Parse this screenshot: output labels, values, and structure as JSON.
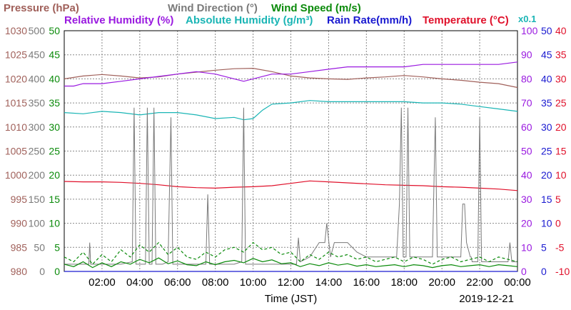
{
  "chart_data": {
    "type": "line",
    "title_lines": [
      [
        {
          "text": "Pressure (hPa)",
          "color": "#a0605a"
        },
        {
          "text": "Wind Direction (°)",
          "color": "#7a7a7a"
        },
        {
          "text": "Wind Speed (m/s)",
          "color": "#0a8a0a"
        }
      ],
      [
        {
          "text": "Relative Humidity (%)",
          "color": "#9a1ae0"
        },
        {
          "text": "Absolute Humidity (g/m³)",
          "color": "#1ab5b5"
        },
        {
          "text": "Rain Rate(mm/h)",
          "color": "#1a1ad0"
        },
        {
          "text": "Temperature (°C)",
          "color": "#e0102a"
        }
      ]
    ],
    "abs_humidity_scale_note": "x0.1",
    "xlabel": "Time (JST)",
    "date": "2019-12-21",
    "x_ticks": [
      "02:00",
      "04:00",
      "06:00",
      "08:00",
      "10:00",
      "12:00",
      "14:00",
      "16:00",
      "18:00",
      "20:00",
      "22:00",
      "00:00"
    ],
    "x_range_hours": [
      0,
      24
    ],
    "grid": true,
    "axes": {
      "pressure": {
        "range": [
          980,
          1030
        ],
        "ticks": [
          "980",
          "985",
          "990",
          "995",
          "1000",
          "1005",
          "1010",
          "1015",
          "1020",
          "1025",
          "1030"
        ],
        "color": "#a0605a"
      },
      "wind_direction": {
        "range": [
          0,
          500
        ],
        "ticks": [
          "0",
          "50",
          "100",
          "150",
          "200",
          "250",
          "300",
          "350",
          "400",
          "450",
          "500"
        ],
        "color": "#7a7a7a"
      },
      "wind_speed": {
        "range": [
          0,
          50
        ],
        "ticks": [
          "0",
          "5",
          "10",
          "15",
          "20",
          "25",
          "30",
          "35",
          "40",
          "45",
          "50"
        ],
        "color": "#0a8a0a"
      },
      "relative_humidity": {
        "range": [
          0,
          100
        ],
        "ticks": [
          "0",
          "10",
          "20",
          "30",
          "40",
          "50",
          "60",
          "70",
          "80",
          "90",
          "100"
        ],
        "color": "#9a1ae0"
      },
      "rain_rate": {
        "range": [
          0,
          50
        ],
        "ticks": [
          "0",
          "5",
          "10",
          "15",
          "20",
          "25",
          "30",
          "35",
          "40",
          "45",
          "50"
        ],
        "color": "#1a1ad0"
      },
      "temperature": {
        "range": [
          -10,
          40
        ],
        "ticks": [
          "-10",
          "-5",
          "0",
          "5",
          "10",
          "15",
          "20",
          "25",
          "30",
          "35",
          "40"
        ],
        "color": "#e0102a"
      }
    },
    "series": [
      {
        "name": "Pressure (hPa)",
        "color": "#a0605a",
        "axis": "pressure",
        "style": "solid",
        "x": [
          0,
          1,
          2,
          3,
          4,
          5,
          6,
          7,
          8,
          9,
          10,
          11,
          12,
          13,
          14,
          15,
          16,
          17,
          18,
          19,
          20,
          21,
          22,
          23,
          24
        ],
        "y": [
          1020,
          1020.6,
          1020.9,
          1020.6,
          1020.2,
          1020.4,
          1021.0,
          1021.4,
          1021.8,
          1022.1,
          1022.2,
          1021.5,
          1020.6,
          1020.2,
          1020.0,
          1019.9,
          1020.2,
          1020.4,
          1020.7,
          1020.4,
          1020.0,
          1019.7,
          1019.3,
          1019.0,
          1018.2
        ]
      },
      {
        "name": "Relative Humidity (%)",
        "color": "#9a1ae0",
        "axis": "relative_humidity",
        "style": "solid",
        "x": [
          0,
          0.5,
          1,
          2,
          3,
          4,
          5,
          6,
          7,
          8,
          9,
          9.5,
          10,
          11,
          12,
          13,
          14,
          15,
          16,
          17,
          18,
          19,
          20,
          21,
          22,
          23,
          24
        ],
        "y": [
          77,
          77,
          78,
          78,
          79,
          80,
          81,
          82,
          83,
          82,
          80,
          79,
          80,
          82,
          82,
          83,
          84,
          85,
          85,
          85,
          85,
          86,
          86,
          86,
          86,
          86,
          87
        ]
      },
      {
        "name": "Absolute Humidity (g/m³)",
        "color": "#1ab5b5",
        "axis": "relative_humidity",
        "scale_note": "x0.1",
        "x": [
          0,
          1,
          2,
          3,
          4,
          5,
          6,
          7,
          8,
          9,
          9.5,
          10,
          10.5,
          11,
          12,
          13,
          14,
          15,
          16,
          17,
          18,
          19,
          20,
          21,
          22,
          23,
          24
        ],
        "y": [
          66,
          65.5,
          66.5,
          66,
          65,
          66,
          66,
          65,
          63.5,
          64,
          63,
          63.5,
          67,
          69.5,
          70,
          71,
          70.5,
          70.5,
          70.5,
          70.5,
          70.5,
          70,
          70,
          69.5,
          68.5,
          67.5,
          66.5
        ]
      },
      {
        "name": "Temperature (°C)",
        "color": "#e0102a",
        "axis": "temperature",
        "style": "solid",
        "x": [
          0,
          1,
          2,
          3,
          4,
          5,
          6,
          7,
          8,
          9,
          10,
          11,
          12,
          13,
          14,
          15,
          16,
          17,
          18,
          19,
          20,
          21,
          22,
          23,
          24
        ],
        "y": [
          8.7,
          8.6,
          8.6,
          8.5,
          8.3,
          8.0,
          7.6,
          7.4,
          7.3,
          7.5,
          7.6,
          7.8,
          8.3,
          8.8,
          8.6,
          8.4,
          8.2,
          8.0,
          7.9,
          7.8,
          7.6,
          7.5,
          7.3,
          7.1,
          6.8
        ]
      },
      {
        "name": "Wind Direction (°)",
        "color": "#7a7a7a",
        "axis": "wind_direction",
        "style": "solid",
        "x": [
          0,
          1.3,
          1.35,
          1.4,
          3,
          3.6,
          3.7,
          3.8,
          4.3,
          4.4,
          4.5,
          4.65,
          4.75,
          4.85,
          5.2,
          5.5,
          5.65,
          5.75,
          5.85,
          6.2,
          7.5,
          7.6,
          7.7,
          9.0,
          9.4,
          9.5,
          9.6,
          10.2,
          11,
          12.3,
          12.4,
          12.5,
          13,
          13.5,
          13.8,
          13.9,
          14.1,
          14.3,
          15,
          15.5,
          16,
          16.5,
          17,
          17.6,
          17.75,
          17.85,
          17.95,
          18.1,
          18.2,
          18.3,
          18.4,
          19.5,
          19.65,
          19.75,
          19.85,
          20.5,
          21.0,
          21.1,
          21.2,
          21.3,
          21.5,
          21.55,
          21.6,
          21.9,
          22.0,
          22.1,
          22.3,
          23,
          23.5,
          23.6,
          23.7,
          24
        ],
        "y": [
          15,
          15,
          60,
          15,
          15,
          20,
          340,
          15,
          15,
          340,
          15,
          15,
          340,
          15,
          15,
          20,
          320,
          15,
          15,
          15,
          15,
          160,
          15,
          15,
          20,
          340,
          15,
          15,
          15,
          15,
          70,
          20,
          30,
          60,
          60,
          100,
          30,
          60,
          60,
          40,
          30,
          30,
          30,
          30,
          140,
          340,
          30,
          30,
          340,
          30,
          30,
          30,
          320,
          30,
          30,
          30,
          30,
          140,
          140,
          60,
          30,
          30,
          20,
          20,
          320,
          20,
          20,
          20,
          20,
          60,
          20,
          20
        ]
      },
      {
        "name": "Wind Speed (m/s)",
        "color": "#0a8a0a",
        "axis": "wind_speed",
        "style": "dashed",
        "x": [
          0,
          0.5,
          1,
          1.5,
          2,
          2.5,
          3,
          3.5,
          4,
          4.5,
          5,
          5.5,
          6,
          6.5,
          7,
          7.5,
          8,
          8.5,
          9,
          9.5,
          10,
          10.5,
          11,
          11.5,
          12,
          12.5,
          13,
          13.5,
          14,
          14.5,
          15,
          15.5,
          16,
          16.5,
          17,
          17.5,
          18,
          18.5,
          19,
          19.5,
          20,
          20.5,
          21,
          21.5,
          22,
          22.5,
          23,
          23.5,
          24
        ],
        "y": [
          3,
          2,
          4,
          1.5,
          3.5,
          2,
          4.5,
          3,
          5.5,
          4,
          6,
          3.5,
          5,
          3,
          2.5,
          4,
          3,
          4.5,
          5,
          4,
          6,
          4.5,
          5,
          3.5,
          4,
          2,
          3.5,
          2.5,
          4,
          3,
          3.5,
          2.5,
          3,
          2,
          2.5,
          3,
          2,
          3,
          2.5,
          1.5,
          2.5,
          3,
          2,
          2.5,
          3,
          2,
          3,
          2.5,
          2
        ]
      },
      {
        "name": "Wind Speed (m/s)",
        "color": "#0a8a0a",
        "axis": "wind_speed",
        "style": "solid",
        "x": [
          0,
          0.5,
          1,
          1.5,
          2,
          2.5,
          3,
          3.5,
          4,
          4.5,
          5,
          5.5,
          6,
          6.5,
          7,
          7.5,
          8,
          8.5,
          9,
          9.5,
          10,
          10.5,
          11,
          11.5,
          12,
          12.5,
          13,
          13.5,
          14,
          14.5,
          15,
          15.5,
          16,
          16.5,
          17,
          17.5,
          18,
          18.5,
          19,
          19.5,
          20,
          20.5,
          21,
          21.5,
          22,
          22.5,
          23,
          23.5,
          24
        ],
        "y": [
          1.5,
          1,
          2,
          0.8,
          1.8,
          1,
          2,
          1.5,
          2.5,
          1.8,
          2.8,
          1.6,
          2.2,
          1.4,
          1.2,
          2,
          1.4,
          2,
          2.3,
          1.8,
          2.7,
          2,
          2.4,
          1.6,
          1.8,
          1,
          1.6,
          1.2,
          1.8,
          1.3,
          1.6,
          1.1,
          1.4,
          1,
          1.2,
          1.4,
          1,
          1.4,
          1.2,
          0.8,
          1.2,
          1.4,
          1,
          1.2,
          1.4,
          1,
          1.4,
          1.2,
          1
        ]
      },
      {
        "name": "Rain Rate(mm/h)",
        "color": "#1a1ad0",
        "axis": "rain_rate",
        "style": "solid",
        "x": [
          0,
          24
        ],
        "y": [
          0,
          0
        ]
      }
    ]
  }
}
